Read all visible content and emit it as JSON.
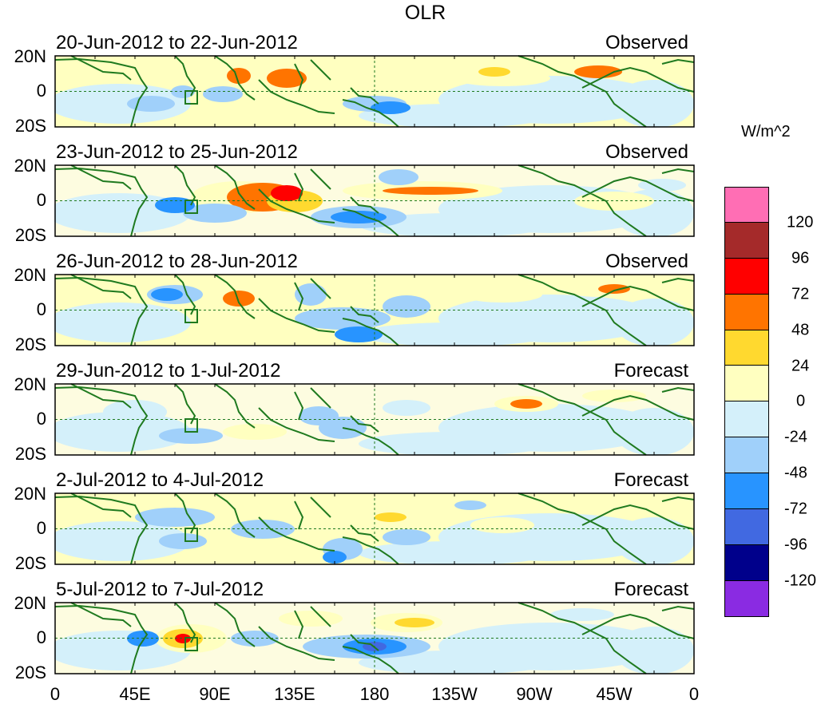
{
  "title": "OLR",
  "panels": [
    {
      "label": "20-Jun-2012 to 22-Jun-2012",
      "kind": "Observed"
    },
    {
      "label": "23-Jun-2012 to 25-Jun-2012",
      "kind": "Observed"
    },
    {
      "label": "26-Jun-2012 to 28-Jun-2012",
      "kind": "Observed"
    },
    {
      "label": "29-Jun-2012 to 1-Jul-2012",
      "kind": "Forecast"
    },
    {
      "label": "2-Jul-2012 to 4-Jul-2012",
      "kind": "Forecast"
    },
    {
      "label": "5-Jul-2012 to 7-Jul-2012",
      "kind": "Forecast"
    }
  ],
  "y_ticks": [
    "20N",
    "0",
    "20S"
  ],
  "x_ticks": [
    "0",
    "45E",
    "90E",
    "135E",
    "180",
    "135W",
    "90W",
    "45W",
    "0"
  ],
  "colorbar": {
    "units": "W/m^2",
    "labels": [
      "120",
      "96",
      "72",
      "48",
      "24",
      "0",
      "-24",
      "-48",
      "-72",
      "-96",
      "-120"
    ],
    "colors": [
      "#ff6eb4",
      "#a52a2a",
      "#ff0000",
      "#ff7400",
      "#ffd92f",
      "#ffffc0",
      "#d4f0fa",
      "#a0d0fa",
      "#2894ff",
      "#4169e1",
      "#00008b",
      "#8a2be2"
    ]
  }
}
